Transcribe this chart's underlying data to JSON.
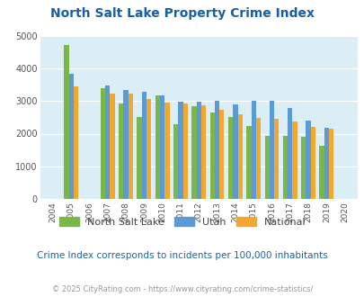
{
  "title": "North Salt Lake Property Crime Index",
  "years": [
    2004,
    2005,
    2006,
    2007,
    2008,
    2009,
    2010,
    2011,
    2012,
    2013,
    2014,
    2015,
    2016,
    2017,
    2018,
    2019,
    2020
  ],
  "north_salt_lake": [
    0,
    4700,
    0,
    3400,
    2920,
    2500,
    3180,
    2280,
    2850,
    2640,
    2500,
    2240,
    1930,
    1920,
    1910,
    1620,
    0
  ],
  "utah": [
    0,
    3820,
    0,
    3480,
    3340,
    3280,
    3160,
    2980,
    2970,
    3000,
    2890,
    3010,
    3000,
    2780,
    2400,
    2180,
    0
  ],
  "national": [
    0,
    3450,
    0,
    3230,
    3220,
    3050,
    2960,
    2910,
    2870,
    2730,
    2600,
    2490,
    2450,
    2360,
    2200,
    2160,
    0
  ],
  "nsl_color": "#7ab648",
  "utah_color": "#5b9bd5",
  "national_color": "#f0a830",
  "bg_color": "#dceef5",
  "ylim": [
    0,
    5000
  ],
  "yticks": [
    0,
    1000,
    2000,
    3000,
    4000,
    5000
  ],
  "subtitle": "Crime Index corresponds to incidents per 100,000 inhabitants",
  "footer": "© 2025 CityRating.com - https://www.cityrating.com/crime-statistics/",
  "title_color": "#1a5ea8",
  "subtitle_color": "#2060a0",
  "footer_color": "#999999",
  "legend_text_color": "#444444"
}
